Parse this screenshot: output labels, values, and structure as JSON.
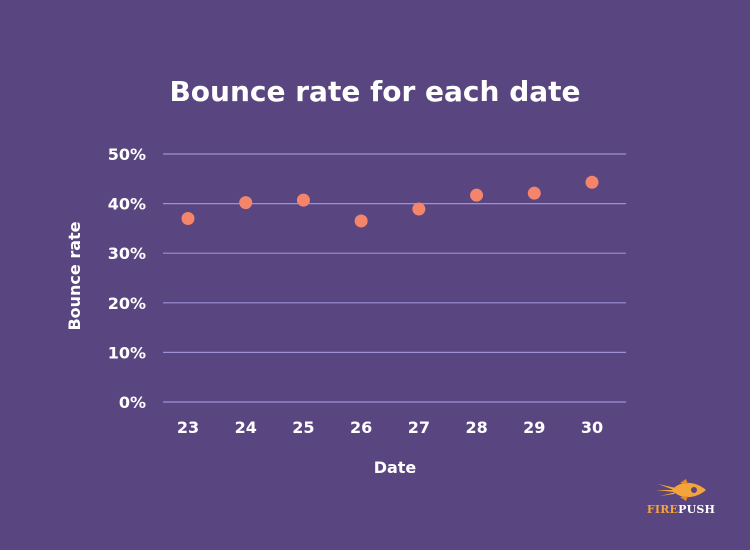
{
  "brand": {
    "name_part1": "FIRE",
    "name_part2": "PUSH",
    "icon": "rocket-icon"
  },
  "colors": {
    "background": "#594580",
    "gridline": "#9d8fd8",
    "marker": "#f5856a",
    "text": "#ffffff",
    "brand_orange": "#f4a43a"
  },
  "chart_data": {
    "type": "scatter",
    "title": "Bounce rate for each date",
    "xlabel": "Date",
    "ylabel": "Bounce rate",
    "categories": [
      "23",
      "24",
      "25",
      "26",
      "27",
      "28",
      "29",
      "30"
    ],
    "series": [
      {
        "values": [
          37,
          40.2,
          40.7,
          36.5,
          38.9,
          41.7,
          42.1,
          44.3
        ]
      }
    ],
    "ylim": [
      0,
      50
    ],
    "yticks": [
      0,
      10,
      20,
      30,
      40,
      50
    ],
    "ytick_labels": [
      "0%",
      "10%",
      "20%",
      "30%",
      "40%",
      "50%"
    ],
    "grid": true,
    "legend": "none"
  }
}
